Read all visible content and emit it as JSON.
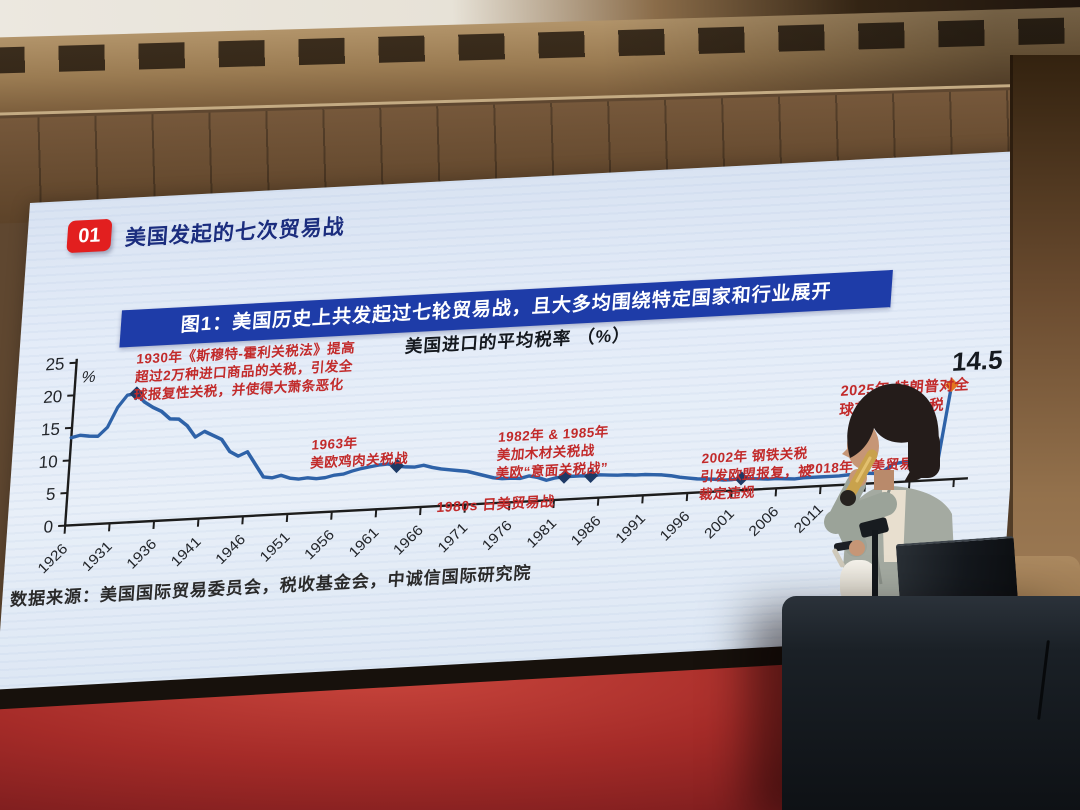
{
  "slide": {
    "badge": "01",
    "title": "美国发起的七次贸易战",
    "banner": "图1：美国历史上共发起过七轮贸易战，且大多均围绕特定国家和行业展开",
    "chart_title": "美国进口的平均税率 （%）",
    "peak_value": "14.5",
    "source": "数据来源：美国国际贸易委员会，税收基金会，中诚信国际研究院"
  },
  "annotations": {
    "a1930": "1930年《斯穆特-霍利关税法》提高超过2万种进口商品的关税，引发全球报复性关税，并使得大萧条恶化",
    "a1963": "1963年\n美欧鸡肉关税战",
    "a1982": "1982年 & 1985年\n美加木材关税战\n美欧“意面关税战”",
    "a1980s": "1980s 日美贸易战",
    "a2002": "2002年 钢铁关税\n引发欧盟报复，被\n裁定违规",
    "a2018": "2018年 中美贸易战",
    "a2025": "2025年 特朗普对全\n球范围加征关税"
  },
  "chart_data": {
    "type": "line",
    "title": "美国进口的平均税率 （%）",
    "ylabel": "%",
    "ylim": [
      0,
      25
    ],
    "yticks": [
      0,
      5,
      10,
      15,
      20,
      25
    ],
    "xtick_labels": [
      "1926",
      "1931",
      "1936",
      "1941",
      "1946",
      "1951",
      "1956",
      "1961",
      "1966",
      "1971",
      "1976",
      "1981",
      "1986",
      "1991",
      "1996",
      "2001",
      "2006",
      "2011"
    ],
    "x_range": [
      1926,
      2026
    ],
    "grid": false,
    "line_color": "#2e62a8",
    "marker_color": "#1e3a66",
    "series": [
      [
        1926,
        13.5
      ],
      [
        1927,
        13.8
      ],
      [
        1928,
        13.6
      ],
      [
        1929,
        13.5
      ],
      [
        1930,
        14.8
      ],
      [
        1931,
        17.8
      ],
      [
        1932,
        19.6
      ],
      [
        1933,
        19.8
      ],
      [
        1934,
        18.4
      ],
      [
        1935,
        17.5
      ],
      [
        1936,
        16.8
      ],
      [
        1937,
        15.6
      ],
      [
        1938,
        15.5
      ],
      [
        1939,
        14.4
      ],
      [
        1940,
        12.6
      ],
      [
        1941,
        13.4
      ],
      [
        1942,
        12.7
      ],
      [
        1943,
        12.0
      ],
      [
        1944,
        10.1
      ],
      [
        1945,
        9.3
      ],
      [
        1946,
        9.9
      ],
      [
        1947,
        7.9
      ],
      [
        1948,
        5.9
      ],
      [
        1949,
        5.7
      ],
      [
        1950,
        6.0
      ],
      [
        1951,
        5.5
      ],
      [
        1952,
        5.3
      ],
      [
        1953,
        5.4
      ],
      [
        1954,
        5.2
      ],
      [
        1955,
        5.3
      ],
      [
        1956,
        5.6
      ],
      [
        1957,
        5.7
      ],
      [
        1958,
        6.1
      ],
      [
        1959,
        6.4
      ],
      [
        1960,
        6.6
      ],
      [
        1961,
        6.8
      ],
      [
        1962,
        6.9
      ],
      [
        1963,
        6.5
      ],
      [
        1964,
        6.3
      ],
      [
        1965,
        6.2
      ],
      [
        1966,
        6.4
      ],
      [
        1967,
        6.0
      ],
      [
        1968,
        5.7
      ],
      [
        1969,
        5.5
      ],
      [
        1970,
        5.3
      ],
      [
        1971,
        5.1
      ],
      [
        1972,
        4.7
      ],
      [
        1973,
        4.3
      ],
      [
        1974,
        3.9
      ],
      [
        1975,
        3.7
      ],
      [
        1976,
        3.7
      ],
      [
        1977,
        3.6
      ],
      [
        1978,
        3.9
      ],
      [
        1979,
        3.6
      ],
      [
        1980,
        3.1
      ],
      [
        1981,
        3.4
      ],
      [
        1982,
        3.5
      ],
      [
        1983,
        3.5
      ],
      [
        1984,
        3.5
      ],
      [
        1985,
        3.4
      ],
      [
        1986,
        3.5
      ],
      [
        1987,
        3.4
      ],
      [
        1988,
        3.3
      ],
      [
        1989,
        3.3
      ],
      [
        1990,
        3.2
      ],
      [
        1991,
        3.2
      ],
      [
        1992,
        3.1
      ],
      [
        1993,
        3.0
      ],
      [
        1994,
        2.8
      ],
      [
        1995,
        2.5
      ],
      [
        1996,
        2.3
      ],
      [
        1997,
        2.1
      ],
      [
        1998,
        2.0
      ],
      [
        1999,
        1.9
      ],
      [
        2000,
        1.7
      ],
      [
        2001,
        1.7
      ],
      [
        2002,
        1.8
      ],
      [
        2003,
        1.7
      ],
      [
        2004,
        1.6
      ],
      [
        2005,
        1.5
      ],
      [
        2006,
        1.5
      ],
      [
        2007,
        1.4
      ],
      [
        2008,
        1.3
      ],
      [
        2009,
        1.4
      ],
      [
        2010,
        1.4
      ],
      [
        2011,
        1.4
      ],
      [
        2012,
        1.4
      ],
      [
        2013,
        1.4
      ],
      [
        2014,
        1.5
      ],
      [
        2015,
        1.5
      ],
      [
        2016,
        1.6
      ],
      [
        2017,
        1.5
      ],
      [
        2018,
        1.8
      ],
      [
        2019,
        2.8
      ],
      [
        2020,
        3.0
      ],
      [
        2021,
        3.0
      ],
      [
        2022,
        2.9
      ],
      [
        2023,
        2.5
      ],
      [
        2024,
        2.4
      ],
      [
        2025,
        14.5
      ]
    ],
    "markers": [
      {
        "year": 1933,
        "value": 19.8
      },
      {
        "year": 1963,
        "value": 6.5
      },
      {
        "year": 1982,
        "value": 3.5
      },
      {
        "year": 1985,
        "value": 3.4
      },
      {
        "year": 2002,
        "value": 1.8
      },
      {
        "year": 2025,
        "value": 14.5,
        "color": "#e2751f"
      }
    ],
    "end_label": "14.5"
  }
}
